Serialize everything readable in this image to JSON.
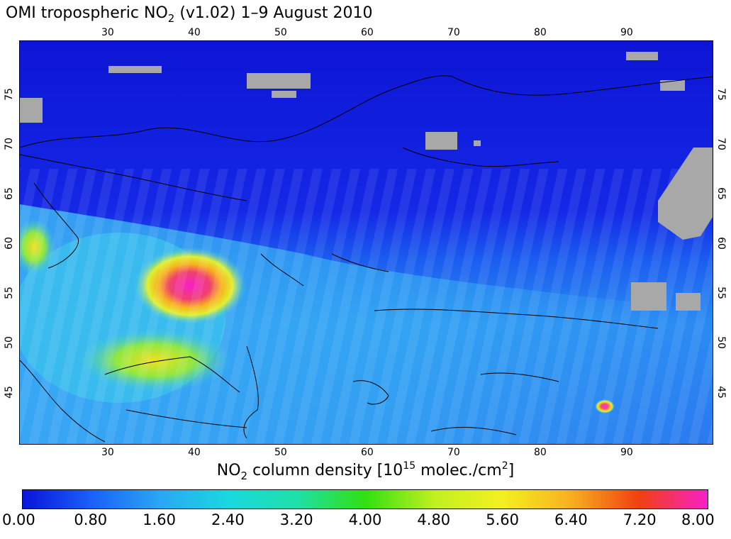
{
  "title": {
    "pre": "OMI tropospheric NO",
    "sub": "2",
    "post": " (v1.02) 1–9 August 2010"
  },
  "map": {
    "lon_range": [
      20,
      100
    ],
    "lat_range": [
      40,
      80
    ],
    "lon_ticks": [
      "30",
      "40",
      "50",
      "60",
      "70",
      "80",
      "90"
    ],
    "lat_ticks": [
      "45",
      "50",
      "55",
      "60",
      "65",
      "70",
      "75"
    ],
    "missing_color": "#a8a8a8"
  },
  "colorbar": {
    "title_pre": "NO",
    "title_sub": "2",
    "title_mid": " column density [10",
    "title_sup": "15",
    "title_mid2": " molec./cm",
    "title_sup2": "2",
    "title_end": "]",
    "ticks": [
      "0.00",
      "0.80",
      "1.60",
      "2.40",
      "3.20",
      "4.00",
      "4.80",
      "5.60",
      "6.40",
      "7.20",
      "8.00"
    ],
    "colors": [
      "#0a14dc",
      "#1a60f8",
      "#2aa6f4",
      "#19d8e0",
      "#1ee0a8",
      "#30e010",
      "#c0f020",
      "#f4f020",
      "#f8b020",
      "#f04010",
      "#f820c8"
    ]
  }
}
